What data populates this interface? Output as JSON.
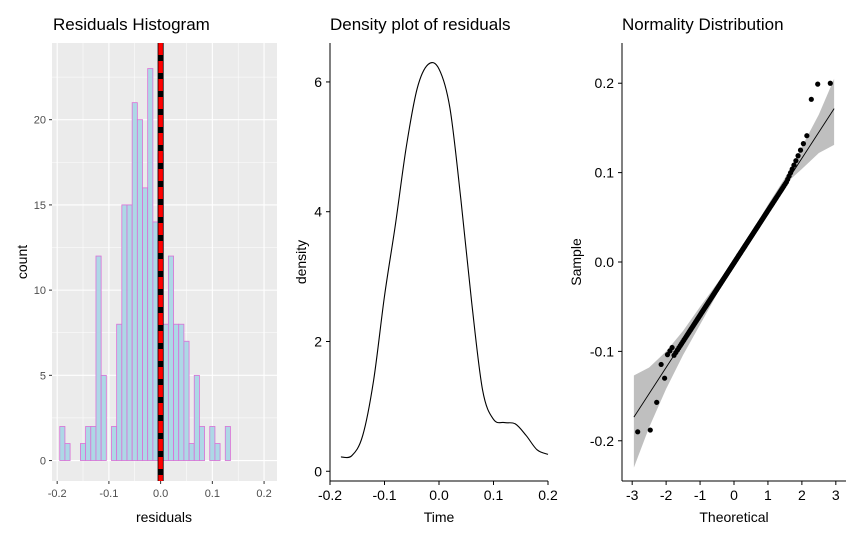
{
  "chart_data": [
    {
      "type": "bar",
      "subtype": "histogram",
      "title": "Residuals Histogram",
      "xlabel": "residuals",
      "ylabel": "count",
      "xlim": [
        -0.21,
        0.225
      ],
      "ylim": [
        -1.2,
        24.5
      ],
      "xticks": [
        -0.2,
        -0.1,
        0.0,
        0.1,
        0.2
      ],
      "xtick_labels": [
        "-0.2",
        "-0.1",
        "0.0",
        "0.1",
        "0.2"
      ],
      "yticks": [
        0,
        5,
        10,
        15,
        20
      ],
      "ytick_labels": [
        "0",
        "5",
        "10",
        "15",
        "20"
      ],
      "bin_width": 0.01,
      "bin_start": -0.195,
      "values": [
        2,
        1,
        0,
        0,
        1,
        2,
        2,
        12,
        5,
        0,
        2,
        8,
        15,
        15,
        21,
        20,
        16,
        23,
        14,
        18,
        8,
        12,
        8,
        8,
        7,
        1,
        5,
        2,
        0,
        2,
        1,
        0,
        2
      ],
      "vlines": [
        {
          "x": 0.0,
          "style": "solid",
          "color": "#000000"
        },
        {
          "x": 0.0,
          "style": "dashed",
          "color": "#ff0000"
        }
      ],
      "colors": {
        "fill": "#add8e6",
        "outline": "#da70d6",
        "panel": "#ebebeb",
        "grid": "#ffffff"
      },
      "grid": true
    },
    {
      "type": "line",
      "title": "Density plot of residuals",
      "xlabel": "Time",
      "ylabel": "density",
      "xlim": [
        -0.2,
        0.2
      ],
      "ylim": [
        -0.15,
        6.6
      ],
      "xticks": [
        -0.2,
        -0.1,
        0.0,
        0.1,
        0.2
      ],
      "xtick_labels": [
        "-0.2",
        "-0.1",
        "0.0",
        "0.1",
        "0.2"
      ],
      "yticks": [
        0,
        2,
        4,
        6
      ],
      "ytick_labels": [
        "0",
        "2",
        "4",
        "6"
      ],
      "x": [
        -0.18,
        -0.16,
        -0.14,
        -0.12,
        -0.1,
        -0.08,
        -0.06,
        -0.04,
        -0.02,
        0.0,
        0.02,
        0.04,
        0.06,
        0.08,
        0.1,
        0.12,
        0.14,
        0.16,
        0.18,
        0.2
      ],
      "y": [
        0.22,
        0.24,
        0.55,
        1.4,
        2.7,
        3.8,
        5.0,
        5.9,
        6.27,
        6.2,
        5.6,
        4.2,
        2.6,
        1.25,
        0.8,
        0.75,
        0.73,
        0.55,
        0.33,
        0.26
      ],
      "grid": false
    },
    {
      "type": "scatter",
      "title": "Normality Distribution",
      "xlabel": "Theoretical",
      "ylabel": "Sample",
      "xlim": [
        -3.3,
        3.3
      ],
      "ylim": [
        -0.245,
        0.245
      ],
      "xticks": [
        -3,
        -2,
        -1,
        0,
        1,
        2,
        3
      ],
      "xtick_labels": [
        "-3",
        "-2",
        "-1",
        "0",
        "1",
        "2",
        "3"
      ],
      "yticks": [
        -0.2,
        -0.1,
        0.0,
        0.1,
        0.2
      ],
      "ytick_labels": [
        "-0.2",
        "-0.1",
        "0.0",
        "0.1",
        "0.2"
      ],
      "ref_line": {
        "slope": 0.0585,
        "intercept": -0.001,
        "x_range": [
          -2.95,
          2.95
        ]
      },
      "band": {
        "x": [
          -2.95,
          -2.5,
          -2.0,
          -1.5,
          -1.0,
          -0.5,
          0.0,
          0.5,
          1.0,
          1.5,
          2.0,
          2.5,
          2.95
        ],
        "lower": [
          -0.23,
          -0.185,
          -0.142,
          -0.104,
          -0.07,
          -0.036,
          -0.004,
          0.027,
          0.058,
          0.087,
          0.104,
          0.122,
          0.131
        ],
        "upper": [
          -0.127,
          -0.118,
          -0.1,
          -0.077,
          -0.05,
          -0.024,
          0.003,
          0.032,
          0.064,
          0.094,
          0.129,
          0.165,
          0.205
        ]
      },
      "colors": {
        "band": "#bfbfbf",
        "points": "#000000"
      },
      "grid": false
    }
  ]
}
